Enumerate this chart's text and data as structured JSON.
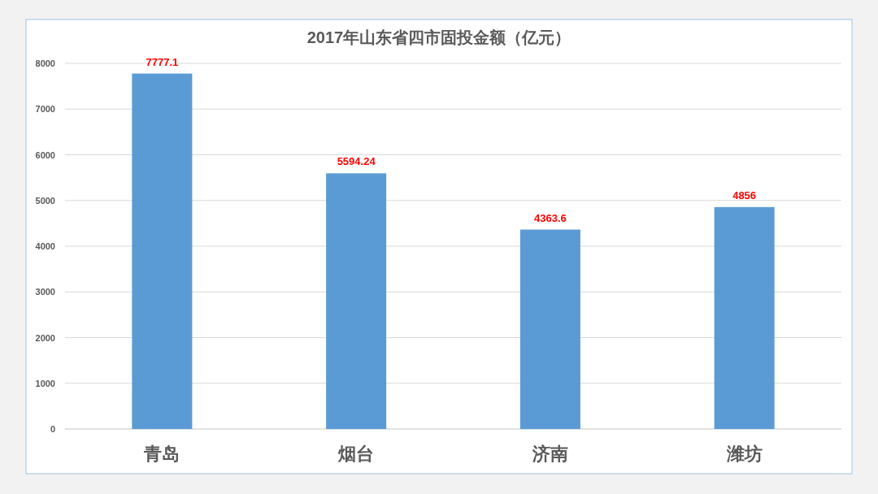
{
  "chart_data": {
    "type": "bar",
    "title": "2017年山东省四市固投金额（亿元）",
    "categories": [
      "青岛",
      "烟台",
      "济南",
      "潍坊"
    ],
    "values": [
      7777.1,
      5594.24,
      4363.6,
      4856
    ],
    "color": "#5b9bd5",
    "ylim": [
      0,
      8000
    ],
    "yticks": [
      0,
      1000,
      2000,
      3000,
      4000,
      5000,
      6000,
      7000,
      8000
    ],
    "grid": "y",
    "data_labels": true
  }
}
